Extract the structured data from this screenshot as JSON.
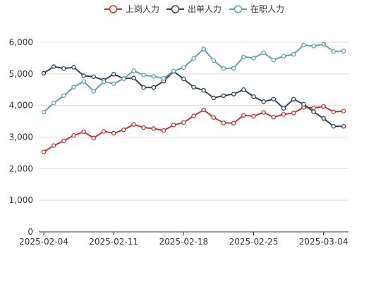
{
  "chart_data": {
    "type": "line",
    "title": "",
    "xlabel": "",
    "ylabel": "",
    "ylim": [
      0,
      6000
    ],
    "yticks": [
      0,
      1000,
      2000,
      3000,
      4000,
      5000,
      6000
    ],
    "ytick_labels": [
      "0",
      "1,000",
      "2,000",
      "3,000",
      "4,000",
      "5,000",
      "6,000"
    ],
    "xtick_labels": [
      "2025-02-04",
      "2025-02-11",
      "2025-02-18",
      "2025-02-25",
      "2025-03-04"
    ],
    "x": [
      "2025-02-04",
      "2025-02-05",
      "2025-02-06",
      "2025-02-07",
      "2025-02-08",
      "2025-02-09",
      "2025-02-10",
      "2025-02-11",
      "2025-02-12",
      "2025-02-13",
      "2025-02-14",
      "2025-02-15",
      "2025-02-16",
      "2025-02-17",
      "2025-02-18",
      "2025-02-19",
      "2025-02-20",
      "2025-02-21",
      "2025-02-22",
      "2025-02-23",
      "2025-02-24",
      "2025-02-25",
      "2025-02-26",
      "2025-02-27",
      "2025-02-28",
      "2025-03-01",
      "2025-03-02",
      "2025-03-03",
      "2025-03-04",
      "2025-03-05",
      "2025-03-06"
    ],
    "grid": true,
    "legend_position": "top-center",
    "series": [
      {
        "name": "上岗人力",
        "color": "#c23531",
        "values": [
          2530,
          2730,
          2880,
          3050,
          3170,
          2970,
          3180,
          3120,
          3230,
          3400,
          3300,
          3270,
          3210,
          3380,
          3460,
          3670,
          3860,
          3620,
          3450,
          3440,
          3690,
          3660,
          3780,
          3630,
          3720,
          3760,
          3940,
          3920,
          3970,
          3800,
          3820
        ]
      },
      {
        "name": "出单人力",
        "color": "#2f4554",
        "values": [
          5020,
          5230,
          5170,
          5210,
          4940,
          4910,
          4800,
          4990,
          4850,
          4870,
          4570,
          4570,
          4770,
          5080,
          4840,
          4580,
          4480,
          4240,
          4310,
          4360,
          4500,
          4280,
          4120,
          4200,
          3910,
          4200,
          4040,
          3800,
          3590,
          3340,
          3340
        ]
      },
      {
        "name": "在职人力",
        "color": "#61a0a8",
        "values": [
          3790,
          4080,
          4310,
          4580,
          4760,
          4450,
          4750,
          4690,
          4850,
          5100,
          4960,
          4920,
          4860,
          5090,
          5200,
          5490,
          5790,
          5420,
          5170,
          5180,
          5540,
          5500,
          5670,
          5440,
          5560,
          5620,
          5910,
          5880,
          5940,
          5710,
          5720
        ]
      }
    ]
  }
}
